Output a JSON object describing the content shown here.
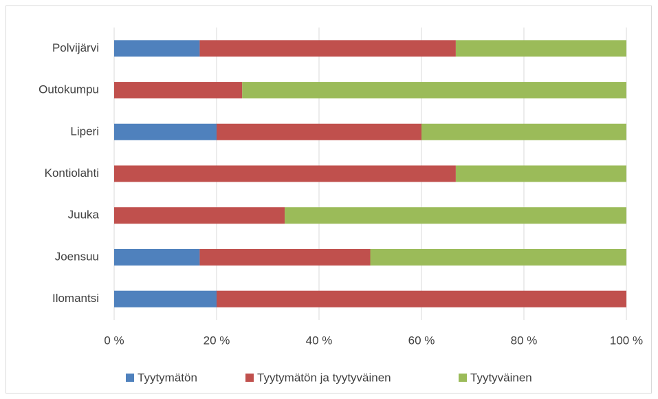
{
  "chart_data": {
    "type": "bar",
    "orientation": "horizontal",
    "stacked": true,
    "categories": [
      "Polvijärvi",
      "Outokumpu",
      "Liperi",
      "Kontiolahti",
      "Juuka",
      "Joensuu",
      "Ilomantsi"
    ],
    "series": [
      {
        "name": "Tyytymätön",
        "color": "#4f81bd",
        "values": [
          16.7,
          0,
          20,
          0,
          0,
          16.7,
          20
        ]
      },
      {
        "name": "Tyytymätön ja tyytyväinen",
        "color": "#c0504d",
        "values": [
          50,
          25,
          40,
          66.7,
          33.3,
          33.3,
          80
        ]
      },
      {
        "name": "Tyytyväinen",
        "color": "#9bbb59",
        "values": [
          33.3,
          75,
          40,
          33.3,
          66.7,
          50,
          0
        ]
      }
    ],
    "xlim": [
      0,
      100
    ],
    "xticks": [
      {
        "value": 0,
        "label": "0 %"
      },
      {
        "value": 20,
        "label": "20 %"
      },
      {
        "value": 40,
        "label": "40 %"
      },
      {
        "value": 60,
        "label": "60 %"
      },
      {
        "value": 80,
        "label": "80 %"
      },
      {
        "value": 100,
        "label": "100 %"
      }
    ],
    "grid": true,
    "legend": "bottom"
  }
}
